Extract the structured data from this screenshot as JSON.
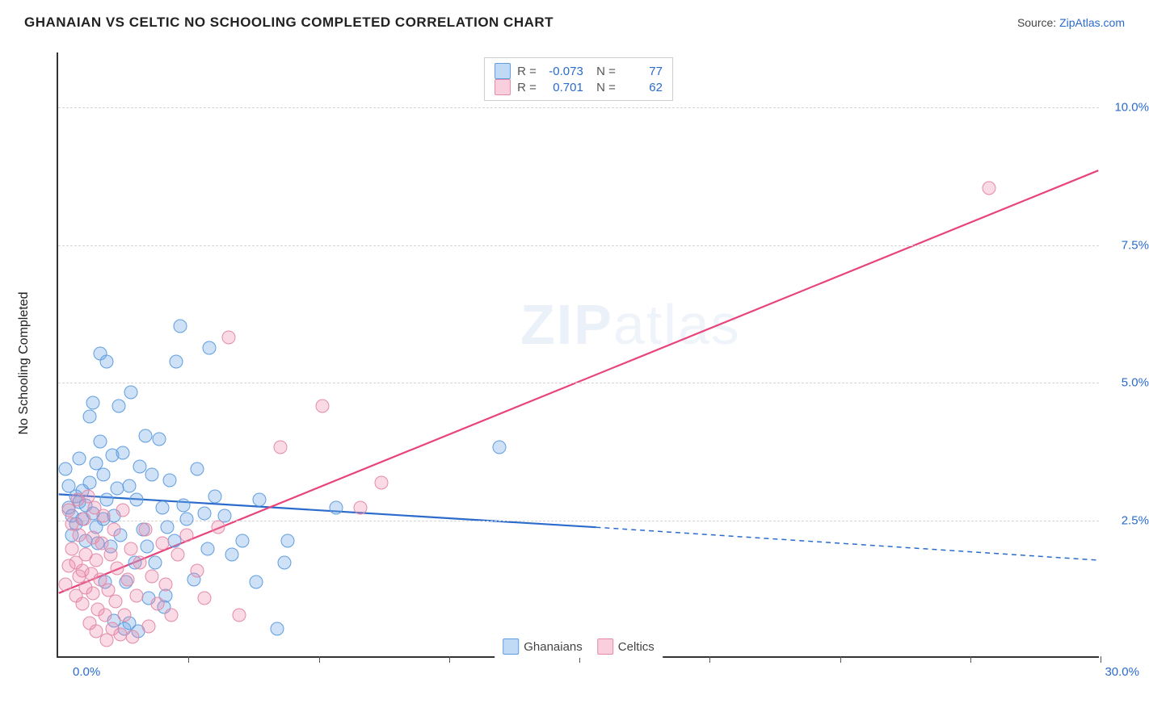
{
  "title": "GHANAIAN VS CELTIC NO SCHOOLING COMPLETED CORRELATION CHART",
  "source_label": "Source:",
  "source_name": "ZipAtlas.com",
  "ylabel": "No Schooling Completed",
  "watermark_a": "ZIP",
  "watermark_b": "atlas",
  "chart": {
    "type": "scatter-correlation",
    "background_color": "#ffffff",
    "grid_color": "#d5d5d5",
    "axis_color": "#333333",
    "text_color": "#222222",
    "tick_label_color": "#2a6bcc",
    "xlim": [
      0,
      30
    ],
    "ylim": [
      0,
      11
    ],
    "y_ticks": [
      2.5,
      5.0,
      7.5,
      10.0
    ],
    "y_tick_labels": [
      "2.5%",
      "5.0%",
      "7.5%",
      "10.0%"
    ],
    "x_ticks": [
      3.75,
      7.5,
      11.25,
      15,
      18.75,
      22.5,
      26.25,
      30
    ],
    "x_left_label": "0.0%",
    "x_right_label": "30.0%",
    "marker_size": 17,
    "series": [
      {
        "name": "Ghanaians",
        "color_fill": "rgba(115,170,230,0.35)",
        "color_stroke": "#5f9de0",
        "R": "-0.073",
        "N": "77",
        "trend": {
          "x1": 0,
          "y1": 2.95,
          "x2_solid": 15.5,
          "y2_solid": 2.35,
          "x2": 30,
          "y2": 1.75,
          "color": "#2a6bcc",
          "width": 2.2
        },
        "points": [
          [
            0.2,
            3.4
          ],
          [
            0.3,
            2.7
          ],
          [
            0.3,
            3.1
          ],
          [
            0.4,
            2.2
          ],
          [
            0.4,
            2.55
          ],
          [
            0.5,
            2.9
          ],
          [
            0.5,
            2.4
          ],
          [
            0.6,
            3.6
          ],
          [
            0.6,
            2.8
          ],
          [
            0.7,
            2.5
          ],
          [
            0.7,
            3.0
          ],
          [
            0.8,
            2.1
          ],
          [
            0.8,
            2.75
          ],
          [
            0.9,
            3.15
          ],
          [
            0.9,
            4.35
          ],
          [
            1.0,
            2.6
          ],
          [
            1.0,
            4.6
          ],
          [
            1.1,
            2.35
          ],
          [
            1.1,
            3.5
          ],
          [
            1.15,
            2.05
          ],
          [
            1.2,
            5.5
          ],
          [
            1.2,
            3.9
          ],
          [
            1.3,
            2.5
          ],
          [
            1.3,
            3.3
          ],
          [
            1.35,
            1.35
          ],
          [
            1.4,
            2.85
          ],
          [
            1.4,
            5.35
          ],
          [
            1.5,
            2.0
          ],
          [
            1.55,
            3.65
          ],
          [
            1.6,
            2.55
          ],
          [
            1.6,
            0.65
          ],
          [
            1.7,
            3.05
          ],
          [
            1.75,
            4.55
          ],
          [
            1.8,
            2.2
          ],
          [
            1.85,
            3.7
          ],
          [
            1.9,
            0.5
          ],
          [
            1.95,
            1.35
          ],
          [
            2.05,
            3.1
          ],
          [
            2.05,
            0.6
          ],
          [
            2.1,
            4.8
          ],
          [
            2.2,
            1.7
          ],
          [
            2.25,
            2.85
          ],
          [
            2.3,
            0.45
          ],
          [
            2.35,
            3.45
          ],
          [
            2.45,
            2.3
          ],
          [
            2.5,
            4.0
          ],
          [
            2.55,
            2.0
          ],
          [
            2.6,
            1.05
          ],
          [
            2.7,
            3.3
          ],
          [
            2.8,
            1.7
          ],
          [
            2.9,
            3.95
          ],
          [
            3.0,
            2.7
          ],
          [
            3.05,
            0.9
          ],
          [
            3.1,
            1.1
          ],
          [
            3.15,
            2.35
          ],
          [
            3.2,
            3.2
          ],
          [
            3.35,
            2.1
          ],
          [
            3.4,
            5.35
          ],
          [
            3.5,
            6.0
          ],
          [
            3.6,
            2.75
          ],
          [
            3.7,
            2.5
          ],
          [
            3.9,
            1.4
          ],
          [
            4.0,
            3.4
          ],
          [
            4.2,
            2.6
          ],
          [
            4.3,
            1.95
          ],
          [
            4.35,
            5.6
          ],
          [
            4.5,
            2.9
          ],
          [
            4.8,
            2.55
          ],
          [
            5.0,
            1.85
          ],
          [
            5.3,
            2.1
          ],
          [
            5.7,
            1.35
          ],
          [
            5.8,
            2.85
          ],
          [
            6.3,
            0.5
          ],
          [
            6.5,
            1.7
          ],
          [
            6.6,
            2.1
          ],
          [
            8.0,
            2.7
          ],
          [
            12.7,
            3.8
          ]
        ]
      },
      {
        "name": "Celtics",
        "color_fill": "rgba(240,135,170,0.30)",
        "color_stroke": "#e38aa8",
        "R": "0.701",
        "N": "62",
        "trend": {
          "x1": 0,
          "y1": 1.15,
          "x2_solid": 30,
          "y2_solid": 8.85,
          "x2": 30,
          "y2": 8.85,
          "color": "#e8447b",
          "width": 2.2
        },
        "points": [
          [
            0.2,
            1.3
          ],
          [
            0.3,
            1.65
          ],
          [
            0.3,
            2.65
          ],
          [
            0.4,
            1.95
          ],
          [
            0.4,
            2.4
          ],
          [
            0.5,
            1.1
          ],
          [
            0.5,
            1.7
          ],
          [
            0.55,
            2.85
          ],
          [
            0.6,
            1.45
          ],
          [
            0.6,
            2.2
          ],
          [
            0.7,
            0.95
          ],
          [
            0.7,
            1.55
          ],
          [
            0.75,
            2.5
          ],
          [
            0.8,
            1.25
          ],
          [
            0.8,
            1.85
          ],
          [
            0.85,
            2.9
          ],
          [
            0.9,
            0.6
          ],
          [
            0.95,
            1.5
          ],
          [
            1.0,
            2.15
          ],
          [
            1.0,
            1.15
          ],
          [
            1.05,
            2.7
          ],
          [
            1.1,
            0.45
          ],
          [
            1.1,
            1.75
          ],
          [
            1.15,
            0.85
          ],
          [
            1.2,
            1.4
          ],
          [
            1.25,
            2.05
          ],
          [
            1.3,
            2.55
          ],
          [
            1.35,
            0.75
          ],
          [
            1.4,
            0.3
          ],
          [
            1.45,
            1.2
          ],
          [
            1.5,
            1.85
          ],
          [
            1.55,
            0.5
          ],
          [
            1.6,
            2.3
          ],
          [
            1.65,
            1.0
          ],
          [
            1.7,
            1.6
          ],
          [
            1.8,
            0.4
          ],
          [
            1.85,
            2.65
          ],
          [
            1.9,
            0.75
          ],
          [
            2.0,
            1.4
          ],
          [
            2.1,
            1.95
          ],
          [
            2.15,
            0.35
          ],
          [
            2.25,
            1.1
          ],
          [
            2.35,
            1.7
          ],
          [
            2.5,
            2.3
          ],
          [
            2.6,
            0.55
          ],
          [
            2.7,
            1.45
          ],
          [
            2.85,
            0.95
          ],
          [
            3.0,
            2.05
          ],
          [
            3.1,
            1.3
          ],
          [
            3.25,
            0.75
          ],
          [
            3.45,
            1.85
          ],
          [
            3.7,
            2.2
          ],
          [
            4.0,
            1.55
          ],
          [
            4.2,
            1.05
          ],
          [
            4.6,
            2.35
          ],
          [
            4.9,
            5.8
          ],
          [
            5.2,
            0.75
          ],
          [
            6.4,
            3.8
          ],
          [
            7.6,
            4.55
          ],
          [
            8.7,
            2.7
          ],
          [
            9.3,
            3.15
          ],
          [
            26.8,
            8.5
          ]
        ]
      }
    ]
  },
  "legend_bottom": [
    {
      "label": "Ghanaians",
      "series": 0
    },
    {
      "label": "Celtics",
      "series": 1
    }
  ]
}
